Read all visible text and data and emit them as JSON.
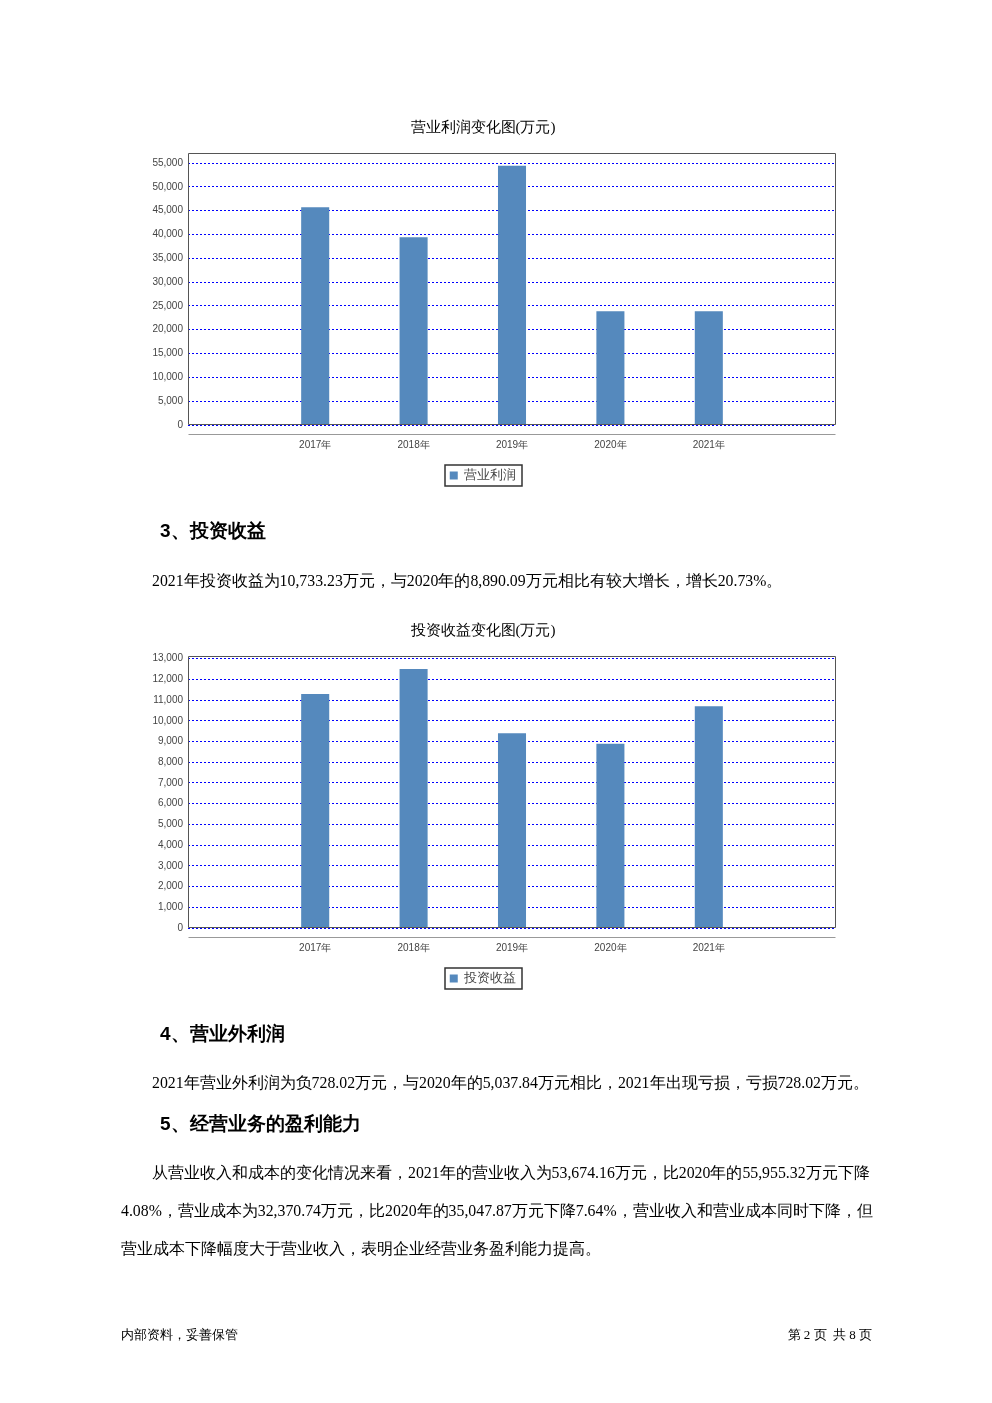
{
  "chart_data": [
    {
      "type": "bar",
      "title": "营业利润变化图(万元)",
      "categories": [
        "2017年",
        "2018年",
        "2019年",
        "2020年",
        "2021年"
      ],
      "series": [
        {
          "name": "营业利润",
          "color": "#5589bd",
          "values": [
            45700,
            39400,
            54400,
            23900,
            23900
          ]
        }
      ],
      "ylim": [
        0,
        57100
      ],
      "yticks": [
        0,
        {
          "value": 5000,
          "label": "5,000"
        },
        {
          "value": 10000,
          "label": "10,000"
        },
        {
          "value": 15000,
          "label": "15,000"
        },
        {
          "value": 20000,
          "label": "20,000"
        },
        {
          "value": 25000,
          "label": "25,000"
        },
        {
          "value": 30000,
          "label": "30,000"
        },
        {
          "value": 35000,
          "label": "35,000"
        },
        {
          "value": 40000,
          "label": "40,000"
        },
        {
          "value": 45000,
          "label": "45,000"
        },
        {
          "value": 50000,
          "label": "50,000"
        },
        {
          "value": 55000,
          "label": "55,000"
        }
      ],
      "grid": "y",
      "legend": "bottom",
      "annotations": [
        "3、投资收益",
        "2021年投资收益为10,733.23万元，与2020年的8,890.09万元相比有较大增长，增长20.73%。"
      ]
    },
    {
      "type": "bar",
      "title": "投资收益变化图(万元)",
      "categories": [
        "2017年",
        "2018年",
        "2019年",
        "2020年",
        "2021年"
      ],
      "series": [
        {
          "name": "投资收益",
          "color": "#5589bd",
          "values": [
            11300,
            12500,
            9400,
            8900,
            10700
          ]
        }
      ],
      "ylim": [
        0,
        13130
      ],
      "yticks": [
        0,
        {
          "value": 1000,
          "label": "1,000"
        },
        {
          "value": 2000,
          "label": "2,000"
        },
        {
          "value": 3000,
          "label": "3,000"
        },
        {
          "value": 4000,
          "label": "4,000"
        },
        {
          "value": 5000,
          "label": "5,000"
        },
        {
          "value": 6000,
          "label": "6,000"
        },
        {
          "value": 7000,
          "label": "7,000"
        },
        {
          "value": 8000,
          "label": "8,000"
        },
        {
          "value": 9000,
          "label": "9,000"
        },
        {
          "value": 10000,
          "label": "10,000"
        },
        {
          "value": 11000,
          "label": "11,000"
        },
        {
          "value": 12000,
          "label": "12,000"
        },
        {
          "value": 13000,
          "label": "13,000"
        }
      ],
      "grid": "y",
      "legend": "bottom",
      "annotations": [
        "4、营业外利润",
        "2021年营业外利润为负728.02万元，与2020年的5,037.84万元相比，2021年出现亏损，亏损728.02万元。",
        "5、经营业务的盈利能力",
        "从营业收入和成本的变化情况来看，2021年的营业收入为53,674.16万元，比2020年的55,955.32万元下降4.08%，营业成本为32,370.74万元，比2020年的35,047.87万元下降7.64%，营业收入和营业成本同时下降，但营业成本下降幅度大于营业收入，表明企业经营业务盈利能力提高。",
        "内部资料，妥善保管",
        "第 2 页  共 8 页"
      ]
    }
  ]
}
